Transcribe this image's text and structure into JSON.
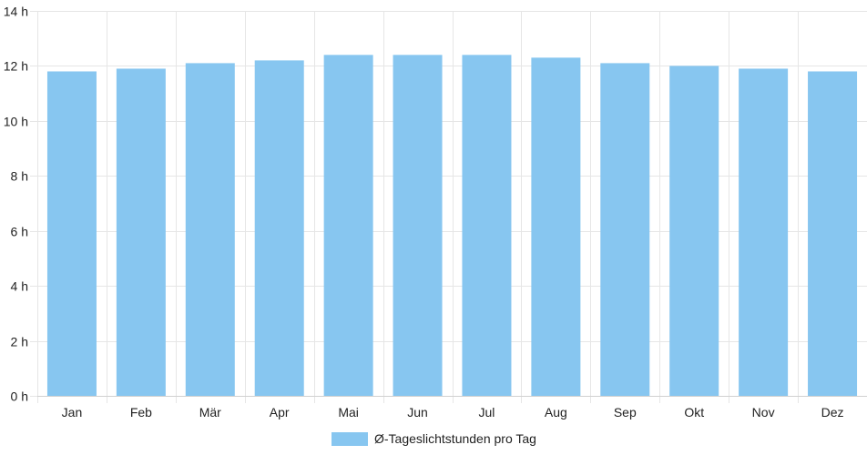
{
  "chart_data": {
    "type": "bar",
    "categories": [
      "Jan",
      "Feb",
      "Mär",
      "Apr",
      "Mai",
      "Jun",
      "Jul",
      "Aug",
      "Sep",
      "Okt",
      "Nov",
      "Dez"
    ],
    "series": [
      {
        "name": "Ø-Tageslichtstunden pro Tag",
        "values": [
          11.8,
          11.9,
          12.1,
          12.2,
          12.4,
          12.4,
          12.4,
          12.3,
          12.1,
          12.0,
          11.9,
          11.8
        ],
        "color": "#87c6f0"
      }
    ],
    "ylim": [
      0,
      14
    ],
    "yticks": [
      0,
      2,
      4,
      6,
      8,
      10,
      12,
      14
    ],
    "ytick_suffix": " h",
    "grid": true,
    "legend_position": "bottom-center",
    "colors": {
      "grid": "#e6e6e6",
      "axis": "#cccccc",
      "text": "#222222"
    }
  }
}
